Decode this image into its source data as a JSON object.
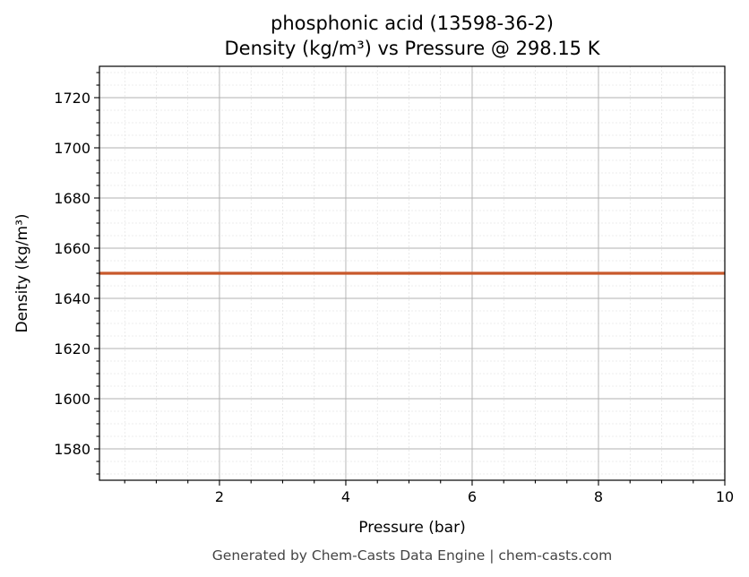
{
  "chart_data": {
    "type": "line",
    "title_line1": "phosphonic acid (13598-36-2)",
    "title_line2": "Density (kg/m³) vs Pressure @ 298.15 K",
    "xlabel": "Pressure (bar)",
    "ylabel": "Density (kg/m³)",
    "xlim": [
      0.1,
      10
    ],
    "ylim": [
      1567.5,
      1732.5
    ],
    "x_ticks": [
      2,
      4,
      6,
      8,
      10
    ],
    "y_ticks": [
      1580,
      1600,
      1620,
      1640,
      1660,
      1680,
      1700,
      1720
    ],
    "grid": true,
    "series": [
      {
        "color": "#c8582b",
        "x": [
          0.1,
          1,
          2,
          3,
          4,
          5,
          6,
          7,
          8,
          9,
          10
        ],
        "y": [
          1650,
          1650,
          1650,
          1650,
          1650,
          1650,
          1650,
          1650,
          1650,
          1650,
          1650
        ]
      }
    ]
  },
  "footer": "Generated by Chem-Casts Data Engine | chem-casts.com"
}
